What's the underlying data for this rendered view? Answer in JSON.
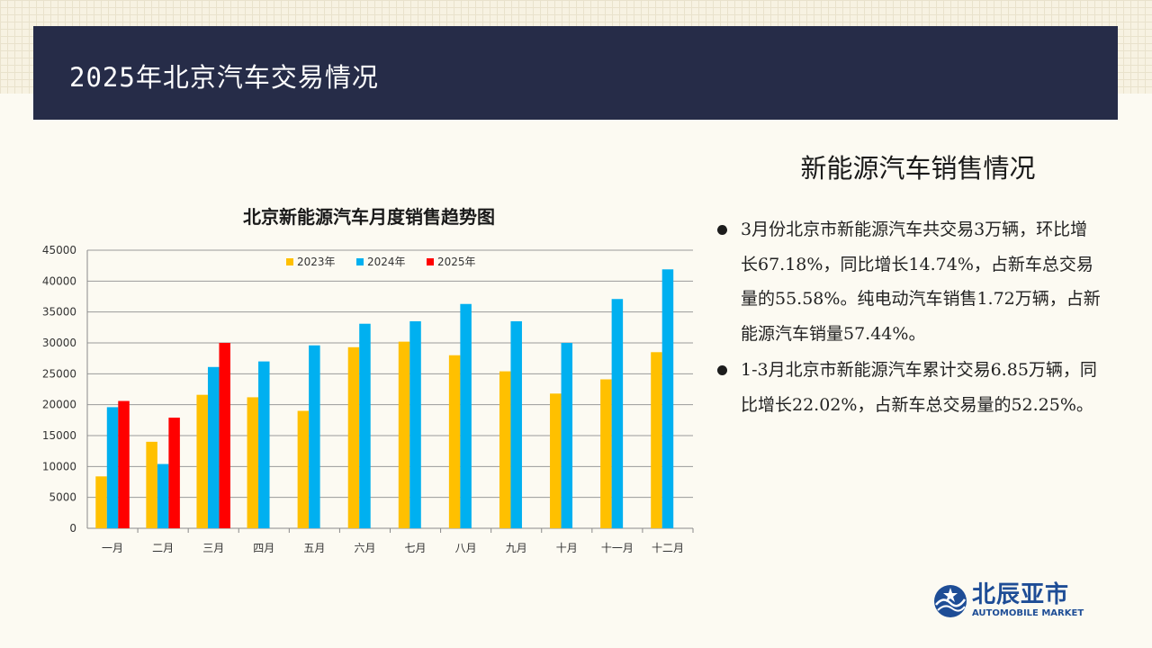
{
  "header": {
    "title": "2025年北京汽车交易情况"
  },
  "right_panel": {
    "heading": "新能源汽车销售情况",
    "bullets": [
      "3月份北京市新能源汽车共交易3万辆，环比增长67.18%，同比增长14.74%，占新车总交易量的55.58%。纯电动汽车销售1.72万辆，占新能源汽车销量57.44%。",
      "1-3月北京市新能源汽车累计交易6.85万辆，同比增长22.02%，占新车总交易量的52.25%。"
    ]
  },
  "logo": {
    "cn": "北辰亚市",
    "en": "AUTOMOBILE MARKET"
  },
  "chart_data": {
    "type": "bar",
    "title": "北京新能源汽车月度销售趋势图",
    "categories": [
      "一月",
      "二月",
      "三月",
      "四月",
      "五月",
      "六月",
      "七月",
      "八月",
      "九月",
      "十月",
      "十一月",
      "十二月"
    ],
    "series": [
      {
        "name": "2023年",
        "color": "#ffc000",
        "values": [
          8400,
          14000,
          21600,
          21200,
          19000,
          29300,
          30200,
          28000,
          25400,
          21800,
          24100,
          28500
        ]
      },
      {
        "name": "2024年",
        "color": "#00b0f0",
        "values": [
          19600,
          10400,
          26100,
          27000,
          29600,
          33100,
          33500,
          36300,
          33500,
          30000,
          37100,
          41900
        ]
      },
      {
        "name": "2025年",
        "color": "#ff0000",
        "values": [
          20600,
          17900,
          30000,
          null,
          null,
          null,
          null,
          null,
          null,
          null,
          null,
          null
        ]
      }
    ],
    "ylim": [
      0,
      45000
    ],
    "yticks": [
      0,
      5000,
      10000,
      15000,
      20000,
      25000,
      30000,
      35000,
      40000,
      45000
    ],
    "grid": true,
    "legend_position": "top-center"
  }
}
